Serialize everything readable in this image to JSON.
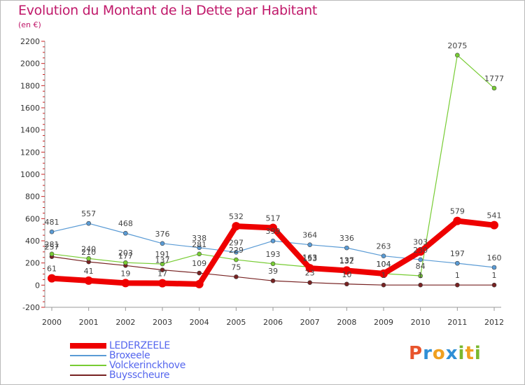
{
  "header": {
    "title": "Evolution du Montant de la Dette par Habitant",
    "unit": "(en €)"
  },
  "logo": {
    "text": "Proxiti",
    "colors": [
      "#e8542c",
      "#2f8fd6",
      "#f0a020",
      "#2f8fd6",
      "#7ab82e",
      "#f0a020",
      "#7ab82e"
    ]
  },
  "chart_data": {
    "type": "line",
    "title": "Evolution du Montant de la Dette par Habitant",
    "ylabel": "(en €)",
    "xlabel": "",
    "categories": [
      "2000",
      "2001",
      "2002",
      "2003",
      "2004",
      "2005",
      "2006",
      "2007",
      "2008",
      "2009",
      "2010",
      "2011",
      "2012"
    ],
    "ylim": [
      -200,
      2200
    ],
    "yticks": [
      -200,
      0,
      200,
      400,
      600,
      800,
      1000,
      1200,
      1400,
      1600,
      1800,
      2000,
      2200
    ],
    "grid": false,
    "legend_position": "bottom-left",
    "series": [
      {
        "name": "LEDERZEELE",
        "color": "#ee0000",
        "values": [
          61,
          41,
          19,
          17,
          9,
          532,
          517,
          153,
          132,
          104,
          303,
          579,
          541
        ],
        "labels": [
          "61",
          "41",
          "19",
          "17",
          "",
          "532",
          "517",
          "153",
          "132",
          "104",
          "303",
          "579",
          "541"
        ]
      },
      {
        "name": "Broxeele",
        "color": "#5a9bd5",
        "values": [
          481,
          557,
          468,
          376,
          338,
          297,
          399,
          364,
          336,
          263,
          230,
          197,
          160
        ],
        "labels": [
          "481",
          "557",
          "468",
          "376",
          "338",
          "297",
          "399",
          "364",
          "336",
          "263",
          "230",
          "197",
          "160"
        ]
      },
      {
        "name": "Volckerinckhove",
        "color": "#77cc33",
        "values": [
          281,
          240,
          203,
          191,
          281,
          229,
          193,
          163,
          137,
          104,
          84,
          2075,
          1777
        ],
        "labels": [
          "281",
          "240",
          "203",
          "191",
          "281",
          "229",
          "193",
          "163",
          "137",
          "104",
          "84",
          "2075",
          "1777"
        ]
      },
      {
        "name": "Buysscheure",
        "color": "#772222",
        "values": [
          257,
          210,
          177,
          137,
          109,
          75,
          39,
          23,
          10,
          1,
          1,
          1,
          1
        ],
        "labels": [
          "257",
          "210",
          "177",
          "137",
          "109",
          "75",
          "39",
          "23",
          "10",
          "1",
          "1",
          "1",
          "1"
        ]
      }
    ]
  }
}
